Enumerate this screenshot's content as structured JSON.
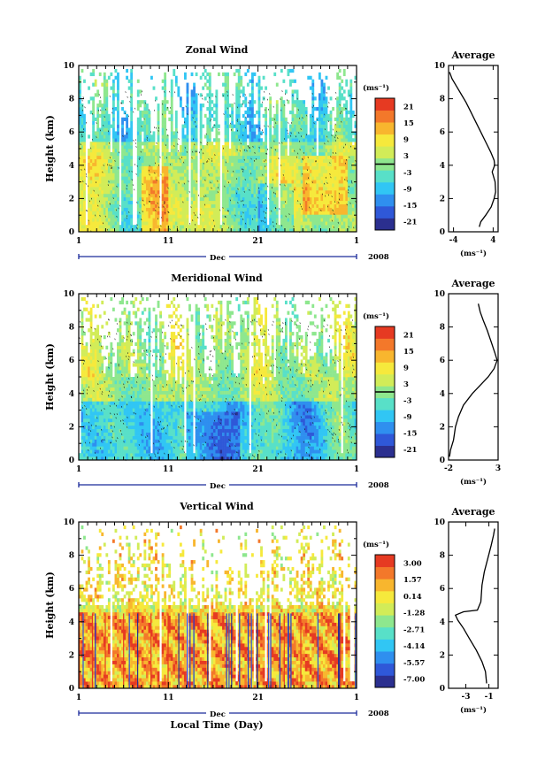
{
  "figure": {
    "xlabel": "Local Time (Day)",
    "month_label": "Dec",
    "year_label": "2008",
    "x_tick_labels": [
      "1",
      "11",
      "21",
      "1"
    ],
    "height_ylabel": "Height (km)",
    "height_tick_labels": [
      "0",
      "2",
      "4",
      "6",
      "8",
      "10"
    ],
    "average_title": "Average",
    "unit_label": "(ms⁻¹)"
  },
  "colors": {
    "scale": [
      "#2b2f8f",
      "#2f58d8",
      "#2f8fef",
      "#31c6f4",
      "#58e0c8",
      "#8ee78e",
      "#d2ec58",
      "#f6e93c",
      "#f8b62e",
      "#f3782a",
      "#e63a22"
    ]
  },
  "chart_data": [
    {
      "type": "heatmap",
      "title": "Zonal Wind",
      "x_range": [
        "Dec 1 2008",
        "Jan 1 2009"
      ],
      "ylim": [
        0,
        10
      ],
      "colorbar": {
        "unit": "(ms⁻¹)",
        "tick_labels": [
          "21",
          "15",
          "9",
          "3",
          "-3",
          "-9",
          "-15",
          "-21"
        ],
        "range": [
          -24,
          24
        ],
        "marked_value": 0
      }
    },
    {
      "type": "line",
      "title": "Average",
      "xlim": [
        -5,
        5
      ],
      "x_tick_labels": [
        "-4",
        "4"
      ],
      "ylim": [
        0,
        10
      ],
      "xlabel": "(ms⁻¹)",
      "ylabel": "Height (km)",
      "x": [
        -4.8,
        -4.3,
        -3.5,
        -2.5,
        -1.5,
        -0.5,
        0.5,
        1.5,
        2.5,
        3.5,
        4.2,
        4.3,
        3.8,
        4.4,
        4.5,
        4.2,
        3.6,
        2.5,
        1.5,
        1.2
      ],
      "y": [
        9.6,
        9.2,
        8.8,
        8.3,
        7.8,
        7.2,
        6.6,
        6.0,
        5.4,
        4.8,
        4.3,
        4.0,
        3.6,
        3.0,
        2.4,
        2.0,
        1.5,
        1.0,
        0.6,
        0.3
      ]
    },
    {
      "type": "heatmap",
      "title": "Meridional Wind",
      "x_range": [
        "Dec 1 2008",
        "Jan 1 2009"
      ],
      "ylim": [
        0,
        10
      ],
      "colorbar": {
        "unit": "(ms⁻¹)",
        "tick_labels": [
          "21",
          "15",
          "9",
          "3",
          "-3",
          "-9",
          "-15",
          "-21"
        ],
        "range": [
          -24,
          24
        ],
        "marked_value": 0
      }
    },
    {
      "type": "line",
      "title": "Average",
      "xlim": [
        -2,
        3
      ],
      "x_tick_labels": [
        "-2",
        "3"
      ],
      "ylim": [
        0,
        10
      ],
      "xlabel": "(ms⁻¹)",
      "ylabel": "Height (km)",
      "x": [
        1.0,
        1.2,
        1.5,
        1.9,
        2.3,
        2.7,
        2.9,
        2.6,
        2.0,
        1.2,
        0.4,
        -0.5,
        -1.0,
        -1.3,
        -1.5,
        -1.8,
        -1.9
      ],
      "y": [
        9.4,
        8.9,
        8.4,
        7.8,
        7.1,
        6.4,
        6.0,
        5.5,
        5.0,
        4.5,
        4.0,
        3.3,
        2.6,
        2.0,
        1.2,
        0.6,
        0.2
      ]
    },
    {
      "type": "heatmap",
      "title": "Vertical Wind",
      "x_range": [
        "Dec 1 2008",
        "Jan 1 2009"
      ],
      "ylim": [
        0,
        10
      ],
      "colorbar": {
        "unit": "(ms⁻¹)",
        "tick_labels": [
          "3.00",
          "1.57",
          "0.14",
          "-1.28",
          "-2.71",
          "-4.14",
          "-5.57",
          "-7.00"
        ],
        "range": [
          -7.5,
          3.5
        ]
      }
    },
    {
      "type": "line",
      "title": "Average",
      "xlim": [
        -4.5,
        -0.2
      ],
      "x_tick_labels": [
        "-3",
        "-1"
      ],
      "ylim": [
        0,
        10
      ],
      "xlabel": "(ms⁻¹)",
      "ylabel": "Height (km)",
      "x": [
        -0.5,
        -0.6,
        -0.8,
        -1.1,
        -1.4,
        -1.6,
        -1.7,
        -2.0,
        -3.2,
        -3.9,
        -3.7,
        -3.2,
        -2.7,
        -2.1,
        -1.6,
        -1.3,
        -1.2
      ],
      "y": [
        9.6,
        9.2,
        8.6,
        7.8,
        7.0,
        6.2,
        5.2,
        4.7,
        4.6,
        4.4,
        4.1,
        3.6,
        3.0,
        2.3,
        1.6,
        1.0,
        0.3
      ]
    }
  ]
}
